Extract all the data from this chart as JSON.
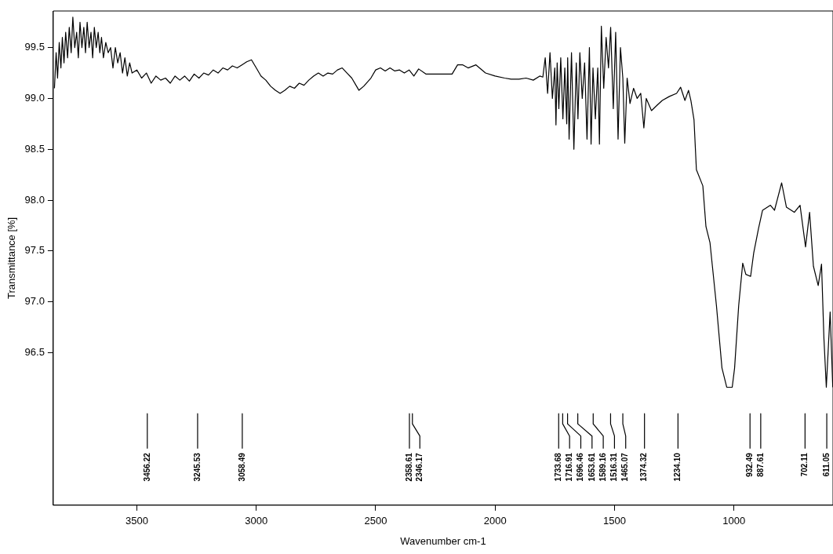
{
  "chart_data": {
    "type": "line",
    "xlabel": "Wavenumber cm-1",
    "ylabel": "Transmittance [%]",
    "xlim": [
      3850,
      585
    ],
    "ylim": [
      95.0,
      99.86
    ],
    "xticks": [
      3500,
      3000,
      2500,
      2000,
      1500,
      1000
    ],
    "yticks": [
      96.5,
      {
        "value": 97,
        "label": "97.0"
      },
      97.5,
      {
        "value": 98,
        "label": "98.0"
      },
      98.5,
      {
        "value": 99,
        "label": "99.0"
      },
      99.5
    ],
    "grid": false,
    "legend": false,
    "marker": "none",
    "line_style": "solid",
    "series": [
      {
        "color": "#000000",
        "x": [
          3845,
          3838,
          3832,
          3825,
          3818,
          3812,
          3805,
          3798,
          3790,
          3783,
          3775,
          3768,
          3760,
          3752,
          3745,
          3738,
          3730,
          3722,
          3715,
          3708,
          3700,
          3692,
          3685,
          3678,
          3670,
          3662,
          3655,
          3648,
          3640,
          3630,
          3620,
          3610,
          3600,
          3590,
          3580,
          3570,
          3560,
          3550,
          3540,
          3530,
          3520,
          3500,
          3480,
          3460,
          3440,
          3420,
          3400,
          3380,
          3360,
          3340,
          3320,
          3300,
          3280,
          3260,
          3240,
          3220,
          3200,
          3180,
          3160,
          3140,
          3120,
          3100,
          3080,
          3060,
          3040,
          3020,
          3000,
          2980,
          2960,
          2940,
          2920,
          2900,
          2880,
          2860,
          2840,
          2820,
          2800,
          2780,
          2760,
          2740,
          2720,
          2700,
          2680,
          2660,
          2640,
          2620,
          2600,
          2580,
          2570,
          2550,
          2520,
          2500,
          2480,
          2460,
          2440,
          2420,
          2400,
          2380,
          2360,
          2340,
          2320,
          2290,
          2250,
          2200,
          2180,
          2157,
          2135,
          2113,
          2080,
          2040,
          2000,
          1960,
          1933,
          1900,
          1870,
          1840,
          1813,
          1800,
          1790,
          1780,
          1770,
          1760,
          1750,
          1745,
          1740,
          1733,
          1725,
          1716,
          1708,
          1700,
          1696,
          1690,
          1680,
          1670,
          1660,
          1653,
          1645,
          1635,
          1625,
          1615,
          1605,
          1598,
          1590,
          1580,
          1570,
          1563,
          1555,
          1545,
          1535,
          1525,
          1516,
          1505,
          1495,
          1485,
          1475,
          1465,
          1457,
          1447,
          1435,
          1420,
          1405,
          1390,
          1377,
          1367,
          1345,
          1323,
          1300,
          1270,
          1240,
          1223,
          1205,
          1190,
          1180,
          1167,
          1157,
          1130,
          1117,
          1100,
          1090,
          1073,
          1050,
          1030,
          1007,
          997,
          980,
          963,
          950,
          930,
          917,
          897,
          880,
          847,
          830,
          800,
          780,
          747,
          723,
          700,
          683,
          667,
          647,
          633,
          623,
          613,
          597,
          586
        ],
        "values": [
          99.1,
          99.45,
          99.2,
          99.55,
          99.3,
          99.6,
          99.35,
          99.65,
          99.4,
          99.7,
          99.45,
          99.8,
          99.5,
          99.65,
          99.4,
          99.75,
          99.5,
          99.7,
          99.45,
          99.75,
          99.5,
          99.65,
          99.4,
          99.7,
          99.5,
          99.65,
          99.45,
          99.6,
          99.4,
          99.55,
          99.45,
          99.5,
          99.3,
          99.5,
          99.35,
          99.45,
          99.25,
          99.4,
          99.22,
          99.35,
          99.25,
          99.28,
          99.2,
          99.25,
          99.15,
          99.22,
          99.18,
          99.2,
          99.15,
          99.22,
          99.18,
          99.22,
          99.17,
          99.24,
          99.2,
          99.25,
          99.23,
          99.28,
          99.25,
          99.3,
          99.28,
          99.32,
          99.3,
          99.33,
          99.36,
          99.38,
          99.3,
          99.22,
          99.18,
          99.12,
          99.08,
          99.05,
          99.08,
          99.12,
          99.1,
          99.15,
          99.13,
          99.18,
          99.22,
          99.25,
          99.22,
          99.25,
          99.24,
          99.28,
          99.3,
          99.25,
          99.2,
          99.12,
          99.08,
          99.12,
          99.2,
          99.28,
          99.3,
          99.27,
          99.3,
          99.27,
          99.28,
          99.25,
          99.28,
          99.22,
          99.29,
          99.24,
          99.24,
          99.24,
          99.24,
          99.33,
          99.33,
          99.3,
          99.33,
          99.25,
          99.22,
          99.2,
          99.19,
          99.19,
          99.2,
          99.18,
          99.22,
          99.21,
          99.4,
          99.05,
          99.45,
          99.0,
          99.3,
          98.74,
          99.35,
          98.9,
          99.4,
          98.8,
          99.3,
          98.75,
          99.4,
          98.6,
          99.45,
          98.5,
          99.35,
          98.8,
          99.45,
          99.0,
          99.35,
          98.6,
          99.5,
          98.55,
          99.3,
          98.8,
          99.3,
          98.55,
          99.71,
          99.1,
          99.6,
          99.3,
          99.7,
          98.9,
          99.65,
          98.6,
          99.5,
          99.2,
          98.56,
          99.2,
          98.95,
          99.1,
          99.0,
          99.05,
          98.71,
          99.0,
          98.88,
          98.93,
          98.98,
          99.02,
          99.05,
          99.11,
          98.98,
          99.08,
          98.98,
          98.79,
          98.3,
          98.14,
          97.74,
          97.58,
          97.35,
          96.96,
          96.35,
          96.16,
          96.16,
          96.35,
          96.96,
          97.38,
          97.27,
          97.25,
          97.48,
          97.72,
          97.9,
          97.95,
          97.9,
          98.17,
          97.93,
          97.88,
          97.95,
          97.54,
          97.88,
          97.35,
          97.16,
          97.37,
          96.64,
          96.16,
          96.9,
          96.16
        ]
      },
      {
        "color": "#000000",
        "x": [
          3456.22,
          3456.22,
          3456.22,
          3456.22
        ],
        "values": [
          95.9,
          95.8,
          95.68,
          95.56
        ]
      },
      {
        "color": "#000000",
        "x": [
          3245.53,
          3245.53,
          3245.53,
          3245.53
        ],
        "values": [
          95.9,
          95.8,
          95.68,
          95.56
        ]
      },
      {
        "color": "#000000",
        "x": [
          3058.49,
          3058.49,
          3058.49,
          3058.49
        ],
        "values": [
          95.9,
          95.8,
          95.68,
          95.56
        ]
      },
      {
        "color": "#000000",
        "x": [
          2358.61,
          2358.61,
          2358.61,
          2358.61
        ],
        "values": [
          95.9,
          95.8,
          95.68,
          95.56
        ]
      },
      {
        "color": "#000000",
        "x": [
          2346.17,
          2346.17,
          2315,
          2315
        ],
        "values": [
          95.9,
          95.8,
          95.68,
          95.56
        ]
      },
      {
        "color": "#000000",
        "x": [
          1733.68,
          1733.68,
          1733.68,
          1733.68
        ],
        "values": [
          95.9,
          95.8,
          95.68,
          95.56
        ]
      },
      {
        "color": "#000000",
        "x": [
          1716.91,
          1716.91,
          1688,
          1688
        ],
        "values": [
          95.9,
          95.8,
          95.68,
          95.56
        ]
      },
      {
        "color": "#000000",
        "x": [
          1696.46,
          1696.46,
          1641,
          1641
        ],
        "values": [
          95.9,
          95.8,
          95.68,
          95.56
        ]
      },
      {
        "color": "#000000",
        "x": [
          1653.61,
          1653.61,
          1594,
          1594
        ],
        "values": [
          95.9,
          95.8,
          95.68,
          95.56
        ]
      },
      {
        "color": "#000000",
        "x": [
          1589.16,
          1589.16,
          1547,
          1547
        ],
        "values": [
          95.9,
          95.8,
          95.68,
          95.56
        ]
      },
      {
        "color": "#000000",
        "x": [
          1516.31,
          1516.31,
          1500,
          1500
        ],
        "values": [
          95.9,
          95.8,
          95.68,
          95.56
        ]
      },
      {
        "color": "#000000",
        "x": [
          1465.07,
          1465.07,
          1453,
          1453
        ],
        "values": [
          95.9,
          95.8,
          95.68,
          95.56
        ]
      },
      {
        "color": "#000000",
        "x": [
          1374.32,
          1374.32,
          1374.32,
          1374.32
        ],
        "values": [
          95.9,
          95.8,
          95.68,
          95.56
        ]
      },
      {
        "color": "#000000",
        "x": [
          1234.1,
          1234.1,
          1234.1,
          1234.1
        ],
        "values": [
          95.9,
          95.8,
          95.68,
          95.56
        ]
      },
      {
        "color": "#000000",
        "x": [
          932.49,
          932.49,
          932.49,
          932.49
        ],
        "values": [
          95.9,
          95.8,
          95.68,
          95.56
        ]
      },
      {
        "color": "#000000",
        "x": [
          887.61,
          887.61,
          887.61,
          887.61
        ],
        "values": [
          95.9,
          95.8,
          95.68,
          95.56
        ]
      },
      {
        "color": "#000000",
        "x": [
          702.11,
          702.11,
          702.11,
          702.11
        ],
        "values": [
          95.9,
          95.8,
          95.68,
          95.56
        ]
      },
      {
        "color": "#000000",
        "x": [
          611.05,
          611.05,
          611.05,
          611.05
        ],
        "values": [
          95.9,
          95.8,
          95.68,
          95.56
        ]
      }
    ],
    "annotations": [
      {
        "text": "3456.22",
        "x": 3456.22,
        "y": 95.56
      },
      {
        "text": "3245.53",
        "x": 3245.53,
        "y": 95.56
      },
      {
        "text": "3058.49",
        "x": 3058.49,
        "y": 95.56
      },
      {
        "text": "2358.61",
        "x": 2358.61,
        "y": 95.56
      },
      {
        "text": "2346.17",
        "x": 2315,
        "y": 95.56
      },
      {
        "text": "1733.68",
        "x": 1733.68,
        "y": 95.56
      },
      {
        "text": "1716.91",
        "x": 1688,
        "y": 95.56
      },
      {
        "text": "1696.46",
        "x": 1641,
        "y": 95.56
      },
      {
        "text": "1653.61",
        "x": 1594,
        "y": 95.56
      },
      {
        "text": "1589.16",
        "x": 1547,
        "y": 95.56
      },
      {
        "text": "1516.31",
        "x": 1500,
        "y": 95.56
      },
      {
        "text": "1465.07",
        "x": 1453,
        "y": 95.56
      },
      {
        "text": "1374.32",
        "x": 1374.32,
        "y": 95.56
      },
      {
        "text": "1234.10",
        "x": 1234.1,
        "y": 95.56
      },
      {
        "text": "932.49",
        "x": 932.49,
        "y": 95.56
      },
      {
        "text": "887.61",
        "x": 887.61,
        "y": 95.56
      },
      {
        "text": "702.11",
        "x": 702.11,
        "y": 95.56
      },
      {
        "text": "611.05",
        "x": 611.05,
        "y": 95.56
      }
    ]
  }
}
